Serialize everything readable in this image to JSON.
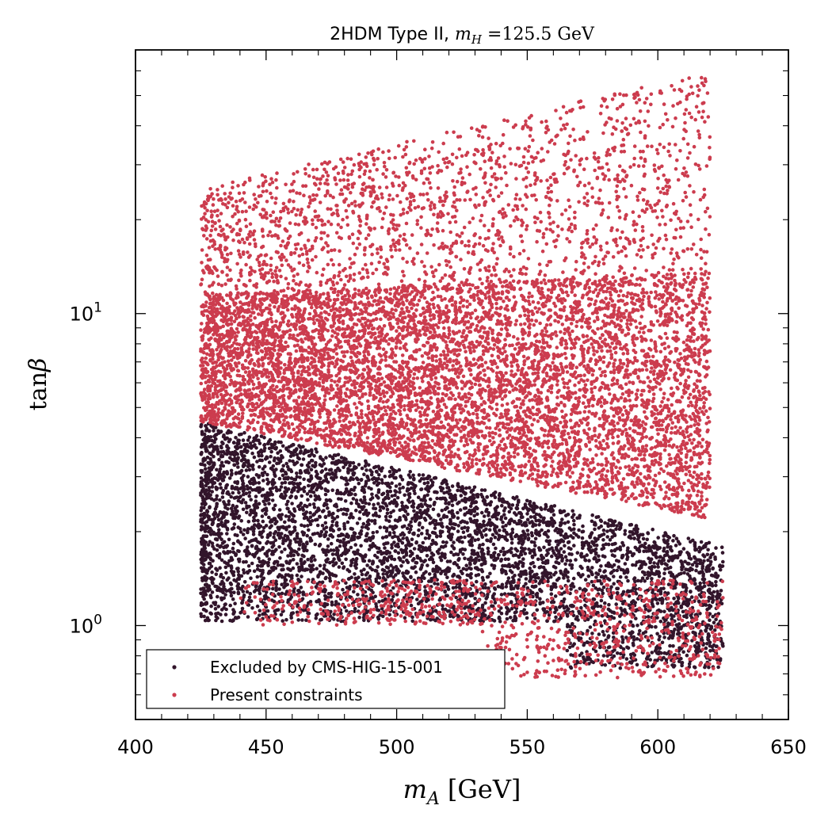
{
  "chart_data": {
    "type": "scatter",
    "title": {
      "text": "2HDM Type II, ",
      "math_var": "m",
      "math_sub": "H",
      "math_rest": " =125.5 GeV"
    },
    "xlabel": {
      "var": "m",
      "sub": "A",
      "unit": "[GeV]"
    },
    "ylabel": {
      "fn": "tan",
      "var": "β"
    },
    "xlim": [
      400,
      650
    ],
    "ylim": [
      0.5,
      70
    ],
    "yscale": "log",
    "x_ticks": [
      {
        "value": 400,
        "label": "400"
      },
      {
        "value": 450,
        "label": "450"
      },
      {
        "value": 500,
        "label": "500"
      },
      {
        "value": 550,
        "label": "550"
      },
      {
        "value": 600,
        "label": "600"
      },
      {
        "value": 650,
        "label": "650"
      }
    ],
    "y_ticks": [
      {
        "value": 1,
        "base": "10",
        "exp": "0"
      },
      {
        "value": 10,
        "base": "10",
        "exp": "1"
      }
    ],
    "grid": false,
    "legend_position": "bottom-left",
    "series": [
      {
        "name": "Excluded by CMS-HIG-15-001",
        "color": "#32152b",
        "description": "dense band, roughly tanβ 0.7–4.5 over mA 425–625 GeV, denser at lower mA; upper edge falls from ~4.5 at 425 GeV to ~2 at 600 GeV",
        "regions": [
          {
            "x_min": 425,
            "x_max": 625,
            "y_min": 0.68,
            "y_max_at_xmin": 4.5,
            "y_max_at_xmax": 1.8,
            "n": 5200
          }
        ]
      },
      {
        "name": "Present constraints",
        "color": "#cc3c4e",
        "description": "large region above the excluded band up to ~60 (upper edge rises from ~25 at 425 GeV to ~60 at 615 GeV), plus a thin strip near tanβ 0.7–1.4",
        "regions": [
          {
            "x_min": 425,
            "x_max": 620,
            "y_lower_at_xmin": 4.5,
            "y_lower_at_xmax": 2.2,
            "y_upper_at_xmin": 25,
            "y_upper_at_xmax": 60,
            "n": 9000
          },
          {
            "x_min": 440,
            "x_max": 625,
            "y_min": 0.68,
            "y_max": 1.4,
            "n": 900
          }
        ]
      }
    ]
  }
}
